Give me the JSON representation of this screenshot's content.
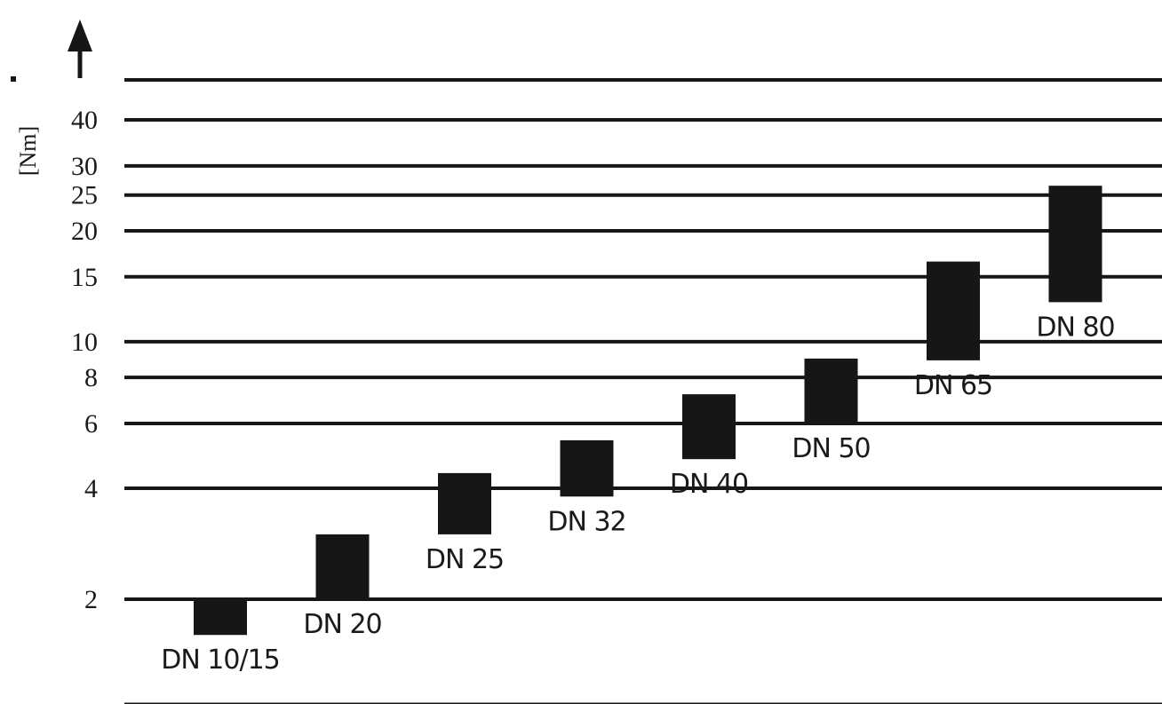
{
  "chart_data": {
    "type": "bar",
    "title": "",
    "xlabel": "",
    "ylabel": "[Nm]",
    "y_scale": "log",
    "yticks": [
      2,
      4,
      6,
      8,
      10,
      15,
      20,
      25,
      30,
      40
    ],
    "ylim": [
      1.4,
      55
    ],
    "grid": true,
    "categories": [
      "DN 10/15",
      "DN 20",
      "DN 25",
      "DN 32",
      "DN 40",
      "DN 50",
      "DN 65",
      "DN 80"
    ],
    "ranges": [
      {
        "low": 1.6,
        "high": 2.0
      },
      {
        "low": 2.0,
        "high": 3.0
      },
      {
        "low": 3.0,
        "high": 4.4
      },
      {
        "low": 3.8,
        "high": 5.4
      },
      {
        "low": 4.8,
        "high": 7.2
      },
      {
        "low": 6.0,
        "high": 9.0
      },
      {
        "low": 8.9,
        "high": 16.5
      },
      {
        "low": 12.8,
        "high": 26.5
      }
    ],
    "colors": {
      "bar": "#161616",
      "grid": "#161616"
    }
  }
}
